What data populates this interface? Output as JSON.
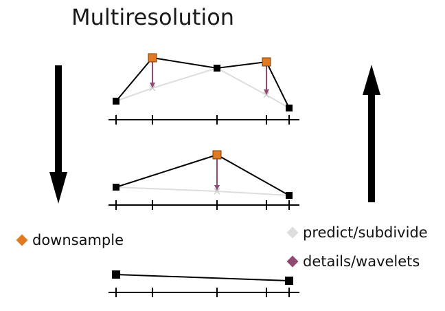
{
  "title": "Multiresolution",
  "legend": {
    "downsample": {
      "label": "downsample",
      "color": "#e07a22"
    },
    "predict": {
      "label": "predict/subdivide",
      "color": "#dddddd"
    },
    "details": {
      "label": "details/wavelets",
      "color": "#8e4a72"
    }
  },
  "colors": {
    "line": "#000000",
    "prediction": "#dddddd",
    "detail_arrow": "#8e4a72",
    "downsample_marker": "#e07a22"
  },
  "arrows": {
    "left": {
      "direction": "down",
      "icon": "down-arrow-icon"
    },
    "right": {
      "direction": "up",
      "icon": "up-arrow-icon"
    }
  }
}
